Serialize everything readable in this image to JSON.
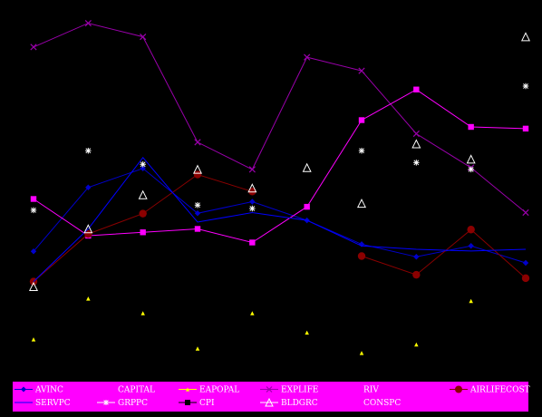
{
  "chart_data": {
    "type": "line",
    "title": "",
    "xlabel": "",
    "ylabel": "",
    "x": [
      1,
      2,
      3,
      4,
      5,
      6,
      7,
      8,
      9,
      10
    ],
    "ylim": [
      0,
      100
    ],
    "grid": false,
    "legend_position": "bottom",
    "background_color": "#000000",
    "legend_background_color": "#ff00ff",
    "series": [
      {
        "name": "AVINC",
        "color": "#0000cc",
        "marker": "diamond",
        "values": [
          31.4,
          50.2,
          55.8,
          42.6,
          46.0,
          40.5,
          33.5,
          29.8,
          33.0,
          28.0
        ]
      },
      {
        "name": "CAPITAL",
        "color": "#ff00ff",
        "marker": "none",
        "values": [
          null,
          null,
          null,
          null,
          null,
          null,
          null,
          null,
          null,
          null
        ]
      },
      {
        "name": "EAPOPAL",
        "color": "#ffff00",
        "marker": "triangle",
        "values": [
          5.5,
          17.5,
          13.2,
          2.8,
          13.2,
          7.5,
          1.5,
          4.0,
          16.8,
          null
        ]
      },
      {
        "name": "EXPLIFE",
        "color": "#9900aa",
        "marker": "x",
        "values": [
          91.5,
          98.5,
          94.5,
          63.5,
          55.5,
          88.5,
          84.5,
          66.0,
          56.0,
          42.8
        ]
      },
      {
        "name": "RIV",
        "color": "#ff00ff",
        "marker": "square",
        "values": [
          46.8,
          36.0,
          37.0,
          38.0,
          34.0,
          44.5,
          70.0,
          79.0,
          68.0,
          67.5
        ]
      },
      {
        "name": "AIRLIFECOST",
        "color": "#8b0000",
        "marker": "circle",
        "values": [
          22.5,
          36.5,
          42.5,
          54.0,
          49.0,
          null,
          30.0,
          24.5,
          37.8,
          23.5
        ]
      },
      {
        "name": "SERVPC",
        "color": "#0000ff",
        "marker": "none",
        "values": [
          22.5,
          38.0,
          59.0,
          40.0,
          42.8,
          40.5,
          33.0,
          32.0,
          31.5,
          32.0
        ]
      },
      {
        "name": "GRPPC",
        "color": "#ffffff",
        "marker": "star",
        "values": [
          43.5,
          61.0,
          57.0,
          45.0,
          44.0,
          null,
          61.0,
          57.5,
          55.5,
          80.0
        ]
      },
      {
        "name": "CPI",
        "color": "#000000",
        "marker": "square",
        "values": [
          null,
          null,
          null,
          null,
          null,
          null,
          null,
          null,
          null,
          null
        ]
      },
      {
        "name": "BLDGRC",
        "color": "#ffffff",
        "marker": "triangle-open",
        "values": [
          21.0,
          38.0,
          48.0,
          55.5,
          50.0,
          56.0,
          45.5,
          63.0,
          58.5,
          94.5
        ]
      },
      {
        "name": "CONSPC",
        "color": "#ff00ff",
        "marker": "none",
        "values": [
          null,
          null,
          null,
          null,
          null,
          null,
          null,
          null,
          null,
          null
        ]
      }
    ]
  }
}
